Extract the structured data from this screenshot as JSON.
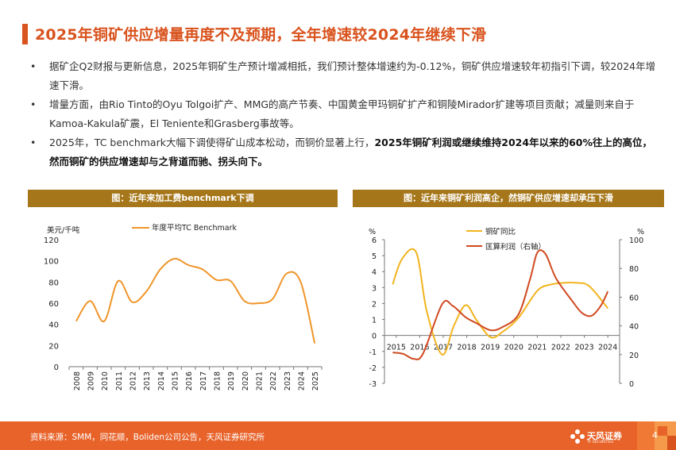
{
  "title": "2025年铜矿供应增量再度不及预期，全年增速较2024年继续下滑",
  "bullets": [
    {
      "dot": "•",
      "normal": "据矿企Q2财报与更新信息，2025年铜矿生产预计增减相抵，我们预计整体增速约为-0.12%，铜矿供应增速较年初指引下调，较2024年增速下滑。",
      "bold": ""
    },
    {
      "dot": "•",
      "normal": "增量方面，由Rio Tinto的Oyu Tolgoi扩产、MMG的高产节奏、中国黄金甲玛铜矿扩产和铜陵Mirador扩建等项目贡献；减量则来自于Kamoa-Kakula矿震，El Teniente和Grasberg事故等。",
      "bold": ""
    },
    {
      "dot": "•",
      "normal": "2025年，TC benchmark大幅下调使得矿山成本松动，而铜价显著上行，",
      "bold": "2025年铜矿利润或继续维持2024年以来的60%往上的高位，然而铜矿的供应增速却与之背道而驰、拐头向下。"
    }
  ],
  "chart_left_header": "图：近年来加工费benchmark下调",
  "chart_right_header": "图：近年来铜矿利润高企，然铜矿供应增速却承压下滑",
  "chart_data": [
    {
      "type": "line",
      "title": "图：近年来加工费benchmark下调",
      "ylabel": "美元/千吨",
      "ylim": [
        0,
        120
      ],
      "yticks": [
        "0",
        "20",
        "40",
        "60",
        "80",
        "100",
        "120"
      ],
      "categories": [
        "2008",
        "2009",
        "2010",
        "2011",
        "2012",
        "2013",
        "2014",
        "2015",
        "2016",
        "2017",
        "2018",
        "2019",
        "2020",
        "2021",
        "2022",
        "2023",
        "2024",
        "2025"
      ],
      "series": [
        {
          "name": "年度平均TC Benchmark",
          "color": "#f0952a",
          "values": [
            43,
            62,
            43,
            81,
            61,
            71,
            92,
            102,
            96,
            92,
            82,
            81,
            62,
            60,
            64,
            88,
            80,
            22
          ]
        }
      ],
      "legend": "top"
    },
    {
      "type": "line",
      "title": "图：近年来铜矿利润高企，然铜矿供应增速却承压下滑",
      "ylabel_left": "%",
      "ylabel_right": "%",
      "ylim_left": [
        -3,
        6
      ],
      "ylim_right": [
        0,
        100
      ],
      "yticks_left": [
        "-3",
        "-2",
        "-1",
        "0",
        "1",
        "2",
        "3",
        "4",
        "5",
        "6"
      ],
      "yticks_right": [
        "0",
        "20",
        "40",
        "60",
        "80",
        "100"
      ],
      "x": [
        "2015",
        "2016",
        "2017",
        "2018",
        "2019",
        "2020",
        "2021",
        "2022",
        "2023",
        "2024"
      ],
      "series": [
        {
          "name": "铜矿同比",
          "axis": "left",
          "color": "#f2b31e",
          "points": [
            [
              2014.85,
              3.2
            ],
            [
              2015.25,
              4.8
            ],
            [
              2015.85,
              5.2
            ],
            [
              2016.3,
              1.5
            ],
            [
              2016.95,
              -1.2
            ],
            [
              2017.45,
              0.6
            ],
            [
              2017.95,
              1.9
            ],
            [
              2018.4,
              1.0
            ],
            [
              2019.0,
              -0.1
            ],
            [
              2019.5,
              0.2
            ],
            [
              2020.2,
              1.1
            ],
            [
              2021.0,
              2.8
            ],
            [
              2021.6,
              3.2
            ],
            [
              2022.2,
              3.3
            ],
            [
              2022.6,
              3.3
            ],
            [
              2023.2,
              3.1
            ],
            [
              2024.0,
              1.7
            ]
          ]
        },
        {
          "name": "匡算利润（右轴）",
          "axis": "right",
          "color": "#d04a21",
          "points": [
            [
              2014.85,
              21.5
            ],
            [
              2015.3,
              20.5
            ],
            [
              2015.75,
              17
            ],
            [
              2016.15,
              21
            ],
            [
              2016.95,
              55
            ],
            [
              2017.4,
              54
            ],
            [
              2017.95,
              46
            ],
            [
              2018.4,
              42
            ],
            [
              2019.0,
              37
            ],
            [
              2019.5,
              39
            ],
            [
              2020.2,
              48
            ],
            [
              2020.7,
              73
            ],
            [
              2021.0,
              91
            ],
            [
              2021.35,
              90
            ],
            [
              2021.8,
              73
            ],
            [
              2022.5,
              57
            ],
            [
              2022.9,
              49
            ],
            [
              2023.3,
              47
            ],
            [
              2023.7,
              54
            ],
            [
              2024.0,
              64
            ]
          ]
        }
      ],
      "legend": "top-center"
    }
  ],
  "footer": {
    "source": "资料来源：SMM，同花顺，Boliden公司公告，天风证券研究所",
    "logo_name": "天风证券",
    "logo_sub": "TF SECURITIES",
    "page": "4"
  }
}
